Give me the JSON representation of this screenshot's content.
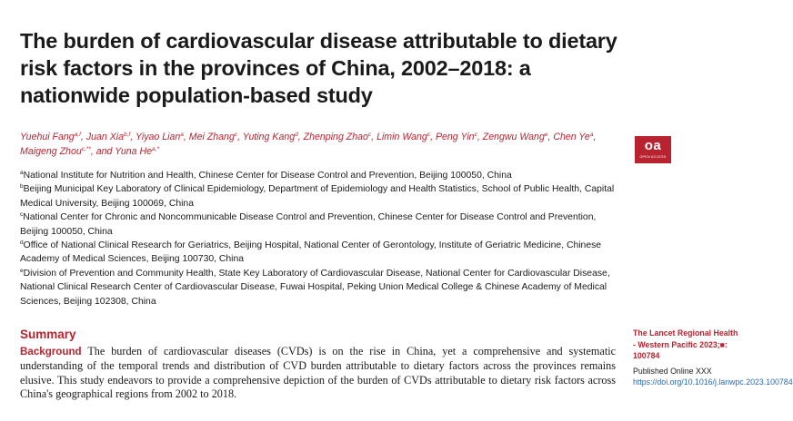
{
  "title": "The burden of cardiovascular disease attributable to dietary risk factors in the provinces of China, 2002–2018: a nationwide population-based study",
  "authors": [
    {
      "name": "Yuehui Fang",
      "sup": "a,f",
      "sep": ", "
    },
    {
      "name": "Juan Xia",
      "sup": "b,f",
      "sep": ", "
    },
    {
      "name": "Yiyao Lian",
      "sup": "a",
      "sep": ", "
    },
    {
      "name": "Mei Zhang",
      "sup": "c",
      "sep": ", "
    },
    {
      "name": "Yuting Kang",
      "sup": "d",
      "sep": ", "
    },
    {
      "name": "Zhenping Zhao",
      "sup": "c",
      "sep": ", "
    },
    {
      "name": "Limin Wang",
      "sup": "c",
      "sep": ", "
    },
    {
      "name": "Peng Yin",
      "sup": "c",
      "sep": ", "
    },
    {
      "name": "Zengwu Wang",
      "sup": "e",
      "sep": ", "
    },
    {
      "name": "Chen Ye",
      "sup": "a",
      "sep": ", "
    },
    {
      "name": "Maigeng Zhou",
      "sup": "c,**",
      "sep": ", and "
    },
    {
      "name": "Yuna He",
      "sup": "a,*",
      "sep": ""
    }
  ],
  "oa_badge": {
    "text": "oa",
    "subtext": "OPEN ACCESS"
  },
  "affiliations": [
    {
      "sup": "a",
      "text": "National Institute for Nutrition and Health, Chinese Center for Disease Control and Prevention, Beijing 100050, China"
    },
    {
      "sup": "b",
      "text": "Beijing Municipal Key Laboratory of Clinical Epidemiology, Department of Epidemiology and Health Statistics, School of Public Health, Capital Medical University, Beijing 100069, China"
    },
    {
      "sup": "c",
      "text": "National Center for Chronic and Noncommunicable Disease Control and Prevention, Chinese Center for Disease Control and Prevention, Beijing 100050, China"
    },
    {
      "sup": "d",
      "text": "Office of National Clinical Research for Geriatrics, Beijing Hospital, National Center of Gerontology, Institute of Geriatric Medicine, Chinese Academy of Medical Sciences, Beijing 100730, China"
    },
    {
      "sup": "e",
      "text": "Division of Prevention and Community Health, State Key Laboratory of Cardiovascular Disease, National Center for Cardiovascular Disease, National Clinical Research Center of Cardiovascular Disease, Fuwai Hospital, Peking Union Medical College & Chinese Academy of Medical Sciences, Beijing 102308, China"
    }
  ],
  "summary": {
    "heading": "Summary",
    "background_label": "Background",
    "background_text": "The burden of cardiovascular diseases (CVDs) is on the rise in China, yet a comprehensive and systematic understanding of the temporal trends and distribution of CVD burden attributable to dietary factors across the provinces remains elusive. This study endeavors to provide a comprehensive depiction of the burden of CVDs attributable to dietary risk factors across China's geographical regions from 2002 to 2018."
  },
  "sidebar": {
    "journal": "The Lancet Regional Health - Western Pacific 2023;■: 100784",
    "published": "Published Online XXX",
    "doi": "https://doi.org/10.1016/j.lanwpc.2023.100784"
  },
  "colors": {
    "accent": "#b8232f",
    "link": "#2a6ab5",
    "text": "#1a1a1a"
  }
}
